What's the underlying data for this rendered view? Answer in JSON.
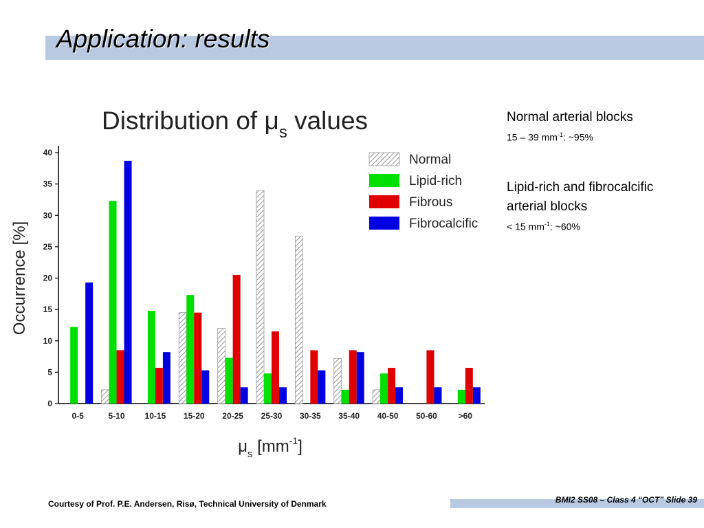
{
  "slide": {
    "title": "Application: results",
    "footer_left": "Courtesy of Prof. P.E. Andersen, Risø, Technical University of Denmark",
    "footer_right": "BMI2 SS08 – Class 4 “OCT” Slide 39",
    "accent_color": "#b8c9e1"
  },
  "side_notes": {
    "normal_heading": "Normal arterial blocks",
    "normal_range": "15 – 39 mm",
    "normal_exp": "-1",
    "normal_share": ": ~95%",
    "lipid_heading_1": "Lipid-rich and fibrocalcific",
    "lipid_heading_2": "arterial blocks",
    "lipid_range": "< 15 mm",
    "lipid_exp": "-1",
    "lipid_share": ": ~60%"
  },
  "chart_data": {
    "type": "bar",
    "title": "Distribution of μs values",
    "xlabel": "μs [mm-1]",
    "ylabel": "Occurrence [%]",
    "ylim": [
      0,
      40
    ],
    "yticks": [
      0,
      5,
      10,
      15,
      20,
      25,
      30,
      35,
      40
    ],
    "categories": [
      "0-5",
      "5-10",
      "10-15",
      "15-20",
      "20-25",
      "25-30",
      "30-35",
      "35-40",
      "40-50",
      "50-60",
      ">60"
    ],
    "series": [
      {
        "name": "Normal",
        "color": "#ffffff",
        "pattern": "hatched",
        "values": [
          0,
          2.2,
          0,
          14.5,
          12,
          34,
          26.7,
          7.2,
          2.2,
          0,
          0
        ]
      },
      {
        "name": "Lipid-rich",
        "color": "#00e000",
        "values": [
          12.2,
          32.3,
          14.8,
          17.3,
          7.3,
          4.8,
          0,
          2.2,
          4.8,
          0,
          2.2
        ]
      },
      {
        "name": "Fibrous",
        "color": "#e00000",
        "values": [
          0,
          8.5,
          5.7,
          14.5,
          20.5,
          11.5,
          8.5,
          8.5,
          5.7,
          8.5,
          5.7
        ]
      },
      {
        "name": "Fibrocalcific",
        "color": "#0000e0",
        "values": [
          19.3,
          38.7,
          8.2,
          5.3,
          2.6,
          2.6,
          5.3,
          8.2,
          2.6,
          2.6,
          2.6
        ]
      }
    ],
    "legend_position": "top-right",
    "grid": false
  }
}
